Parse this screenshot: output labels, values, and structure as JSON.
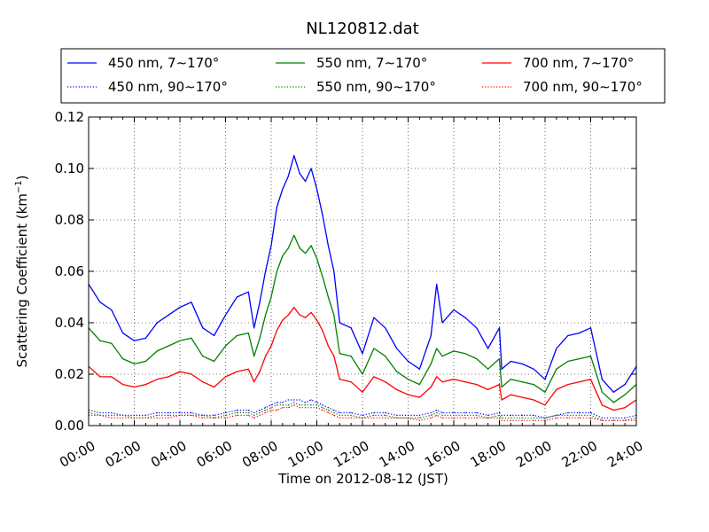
{
  "chart_data": {
    "type": "line",
    "title": "NL120812.dat",
    "xlabel": "Time on 2012-08-12 (JST)",
    "ylabel": "Scattering Coefficient (km",
    "ylabel_sup": "−1",
    "ylabel_close": ")",
    "xlim": [
      0,
      24
    ],
    "ylim": [
      0,
      0.12
    ],
    "grid": true,
    "legend_position": "top",
    "x_ticks": [
      {
        "value": 0,
        "label": "00:00"
      },
      {
        "value": 2,
        "label": "02:00"
      },
      {
        "value": 4,
        "label": "04:00"
      },
      {
        "value": 6,
        "label": "06:00"
      },
      {
        "value": 8,
        "label": "08:00"
      },
      {
        "value": 10,
        "label": "10:00"
      },
      {
        "value": 12,
        "label": "12:00"
      },
      {
        "value": 14,
        "label": "14:00"
      },
      {
        "value": 16,
        "label": "16:00"
      },
      {
        "value": 18,
        "label": "18:00"
      },
      {
        "value": 20,
        "label": "20:00"
      },
      {
        "value": 22,
        "label": "22:00"
      },
      {
        "value": 24,
        "label": "24:00"
      }
    ],
    "y_ticks": [
      {
        "value": 0,
        "label": "0.00"
      },
      {
        "value": 0.02,
        "label": "0.02"
      },
      {
        "value": 0.04,
        "label": "0.04"
      },
      {
        "value": 0.06,
        "label": "0.06"
      },
      {
        "value": 0.08,
        "label": "0.08"
      },
      {
        "value": 0.1,
        "label": "0.10"
      },
      {
        "value": 0.12,
        "label": "0.12"
      }
    ],
    "x": [
      0,
      0.5,
      1,
      1.5,
      2,
      2.5,
      3,
      3.5,
      4,
      4.5,
      5,
      5.5,
      6,
      6.5,
      7,
      7.25,
      7.5,
      7.75,
      8,
      8.25,
      8.5,
      8.75,
      9,
      9.25,
      9.5,
      9.75,
      10,
      10.25,
      10.5,
      10.75,
      11,
      11.5,
      12,
      12.5,
      13,
      13.5,
      14,
      14.5,
      15,
      15.25,
      15.5,
      16,
      16.5,
      17,
      17.5,
      18,
      18.1,
      18.5,
      19,
      19.5,
      20,
      20.5,
      21,
      21.5,
      22,
      22.5,
      23,
      23.5,
      24
    ],
    "series": [
      {
        "name": "450 nm, 7∼170°",
        "color": "#0000ff",
        "style": "solid",
        "values": [
          0.055,
          0.048,
          0.045,
          0.036,
          0.033,
          0.034,
          0.04,
          0.043,
          0.046,
          0.048,
          0.038,
          0.035,
          0.043,
          0.05,
          0.052,
          0.038,
          0.048,
          0.06,
          0.07,
          0.085,
          0.092,
          0.097,
          0.105,
          0.098,
          0.095,
          0.1,
          0.092,
          0.082,
          0.07,
          0.06,
          0.04,
          0.038,
          0.028,
          0.042,
          0.038,
          0.03,
          0.025,
          0.022,
          0.035,
          0.055,
          0.04,
          0.045,
          0.042,
          0.038,
          0.03,
          0.038,
          0.022,
          0.025,
          0.024,
          0.022,
          0.018,
          0.03,
          0.035,
          0.036,
          0.038,
          0.018,
          0.013,
          0.016,
          0.023
        ]
      },
      {
        "name": "550 nm, 7∼170°",
        "color": "#008000",
        "style": "solid",
        "values": [
          0.038,
          0.033,
          0.032,
          0.026,
          0.024,
          0.025,
          0.029,
          0.031,
          0.033,
          0.034,
          0.027,
          0.025,
          0.031,
          0.035,
          0.036,
          0.027,
          0.034,
          0.043,
          0.05,
          0.06,
          0.066,
          0.069,
          0.074,
          0.069,
          0.067,
          0.07,
          0.065,
          0.058,
          0.05,
          0.043,
          0.028,
          0.027,
          0.02,
          0.03,
          0.027,
          0.021,
          0.018,
          0.016,
          0.024,
          0.03,
          0.027,
          0.029,
          0.028,
          0.026,
          0.022,
          0.026,
          0.015,
          0.018,
          0.017,
          0.016,
          0.013,
          0.022,
          0.025,
          0.026,
          0.027,
          0.013,
          0.009,
          0.012,
          0.016
        ]
      },
      {
        "name": "700 nm, 7∼170°",
        "color": "#ff0000",
        "style": "solid",
        "values": [
          0.023,
          0.019,
          0.019,
          0.016,
          0.015,
          0.016,
          0.018,
          0.019,
          0.021,
          0.02,
          0.017,
          0.015,
          0.019,
          0.021,
          0.022,
          0.017,
          0.021,
          0.027,
          0.031,
          0.037,
          0.041,
          0.043,
          0.046,
          0.043,
          0.042,
          0.044,
          0.041,
          0.037,
          0.031,
          0.027,
          0.018,
          0.017,
          0.013,
          0.019,
          0.017,
          0.014,
          0.012,
          0.011,
          0.015,
          0.019,
          0.017,
          0.018,
          0.017,
          0.016,
          0.014,
          0.016,
          0.01,
          0.012,
          0.011,
          0.01,
          0.008,
          0.014,
          0.016,
          0.017,
          0.018,
          0.008,
          0.006,
          0.007,
          0.01
        ]
      },
      {
        "name": "450 nm, 90∼170°",
        "color": "#0000ff",
        "style": "dotted",
        "values": [
          0.006,
          0.005,
          0.005,
          0.004,
          0.004,
          0.004,
          0.005,
          0.005,
          0.005,
          0.005,
          0.004,
          0.004,
          0.005,
          0.006,
          0.006,
          0.005,
          0.006,
          0.007,
          0.008,
          0.009,
          0.009,
          0.01,
          0.01,
          0.01,
          0.009,
          0.01,
          0.009,
          0.008,
          0.007,
          0.006,
          0.005,
          0.005,
          0.004,
          0.005,
          0.005,
          0.004,
          0.004,
          0.004,
          0.005,
          0.006,
          0.005,
          0.005,
          0.005,
          0.005,
          0.004,
          0.005,
          0.004,
          0.004,
          0.004,
          0.004,
          0.003,
          0.004,
          0.005,
          0.005,
          0.005,
          0.003,
          0.003,
          0.003,
          0.004
        ]
      },
      {
        "name": "550 nm, 90∼170°",
        "color": "#008000",
        "style": "dotted",
        "values": [
          0.005,
          0.004,
          0.004,
          0.004,
          0.003,
          0.003,
          0.004,
          0.004,
          0.004,
          0.004,
          0.004,
          0.003,
          0.004,
          0.005,
          0.005,
          0.004,
          0.005,
          0.006,
          0.007,
          0.008,
          0.008,
          0.008,
          0.009,
          0.008,
          0.008,
          0.008,
          0.008,
          0.007,
          0.006,
          0.005,
          0.004,
          0.004,
          0.003,
          0.004,
          0.004,
          0.003,
          0.003,
          0.003,
          0.004,
          0.005,
          0.004,
          0.004,
          0.004,
          0.004,
          0.003,
          0.004,
          0.003,
          0.003,
          0.003,
          0.003,
          0.003,
          0.004,
          0.004,
          0.004,
          0.004,
          0.002,
          0.002,
          0.002,
          0.003
        ]
      },
      {
        "name": "700 nm, 90∼170°",
        "color": "#ff0000",
        "style": "dotted",
        "values": [
          0.004,
          0.004,
          0.003,
          0.003,
          0.003,
          0.003,
          0.003,
          0.003,
          0.004,
          0.004,
          0.003,
          0.003,
          0.003,
          0.004,
          0.004,
          0.003,
          0.004,
          0.005,
          0.006,
          0.006,
          0.007,
          0.007,
          0.008,
          0.007,
          0.007,
          0.007,
          0.007,
          0.006,
          0.005,
          0.004,
          0.003,
          0.003,
          0.003,
          0.003,
          0.003,
          0.003,
          0.003,
          0.002,
          0.003,
          0.004,
          0.003,
          0.003,
          0.003,
          0.003,
          0.003,
          0.003,
          0.002,
          0.002,
          0.002,
          0.002,
          0.002,
          0.003,
          0.003,
          0.003,
          0.003,
          0.002,
          0.002,
          0.002,
          0.002
        ]
      }
    ]
  }
}
